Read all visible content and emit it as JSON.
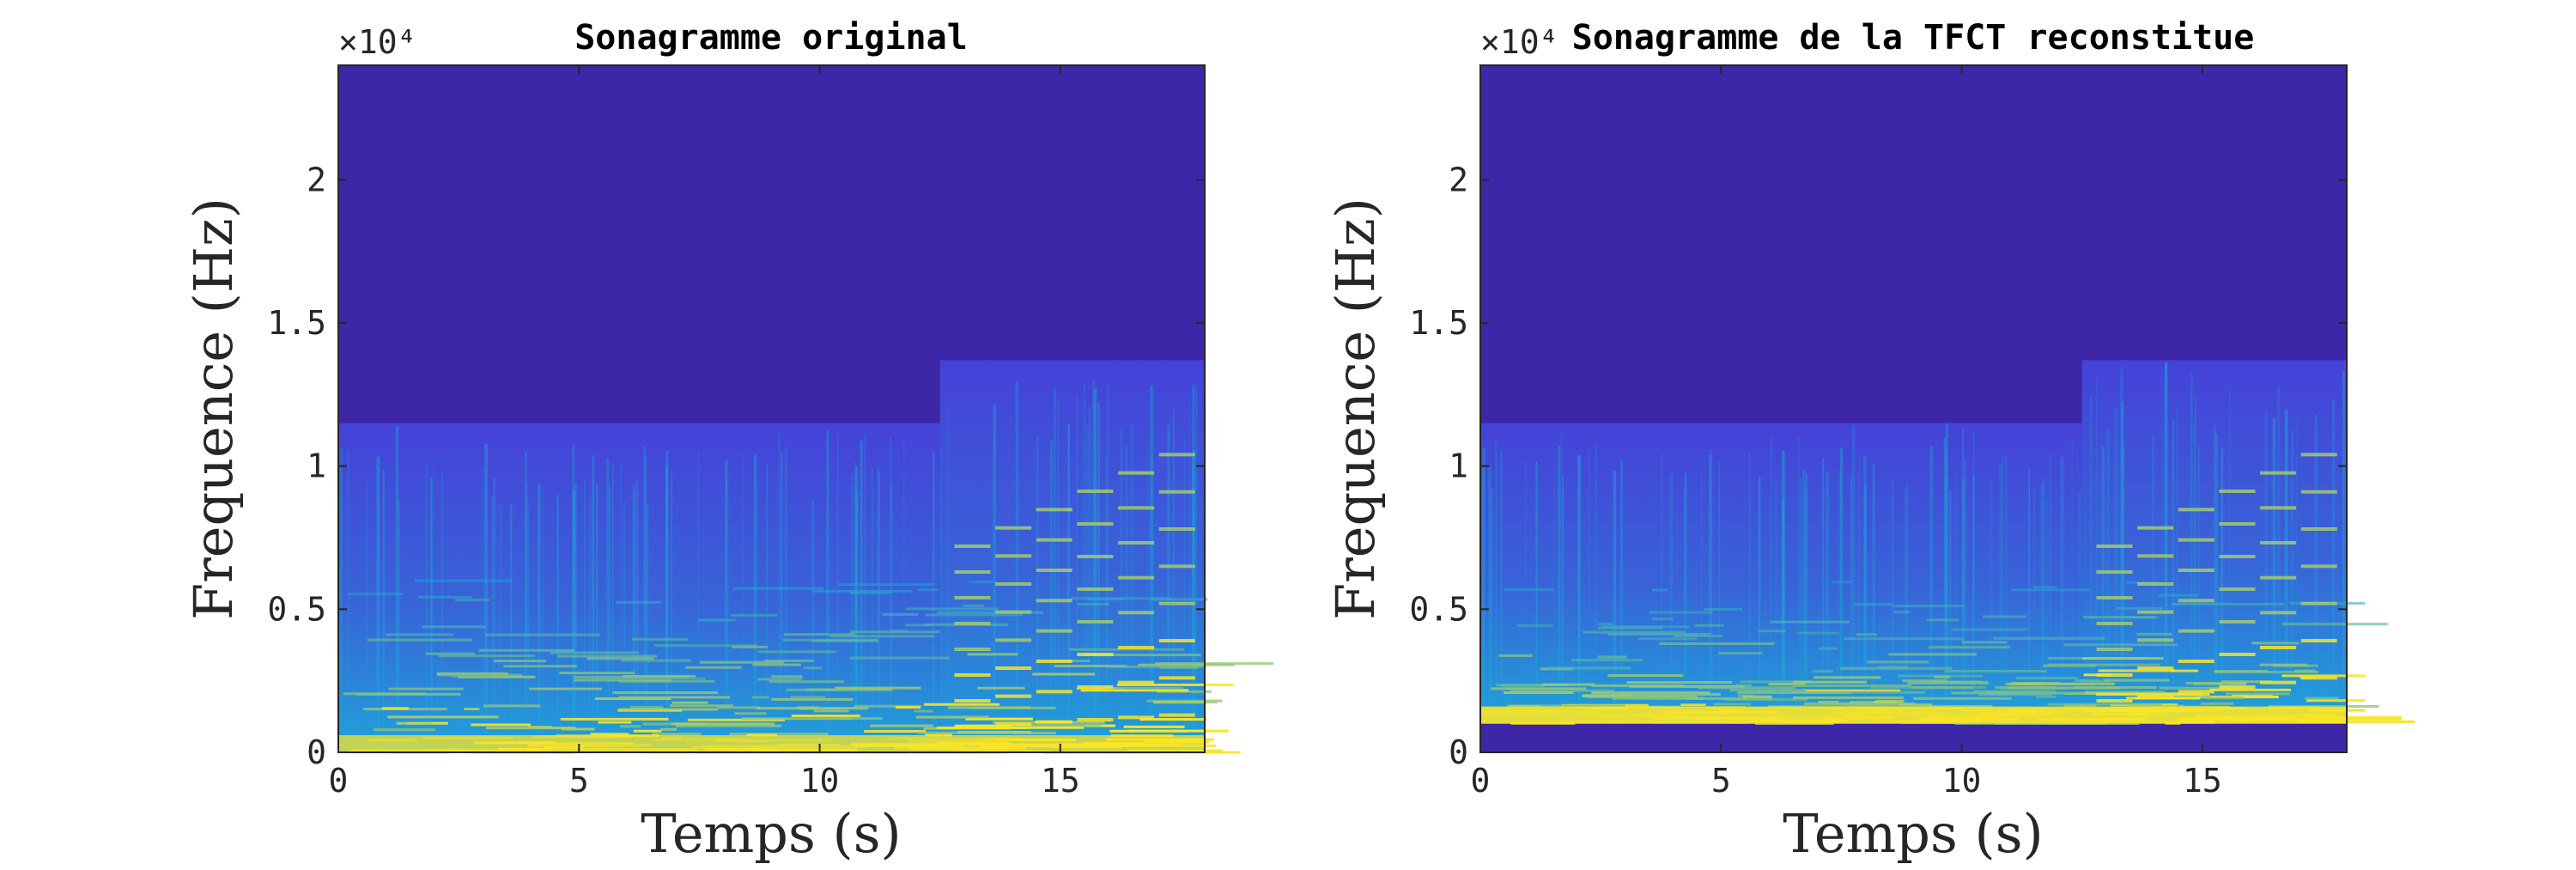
{
  "chart_data": [
    {
      "type": "heatmap",
      "title": "Sonagramme original",
      "xlabel": "Temps (s)",
      "ylabel": "Frequence (Hz)",
      "xlim": [
        0,
        18
      ],
      "ylim": [
        0,
        24000
      ],
      "x_ticks": [
        0,
        5,
        10,
        15
      ],
      "x_tick_labels": [
        "0",
        "5",
        "10",
        "15"
      ],
      "y_ticks": [
        0,
        5000,
        10000,
        15000,
        20000
      ],
      "y_tick_labels": [
        "0",
        "0.5",
        "1",
        "1.5",
        "2"
      ],
      "y_exponent_label": "×10⁴",
      "colormap": "parula",
      "colors": {
        "background": "#3e26a8",
        "low": "#4542d8",
        "mid": "#1fa3d9",
        "high": "#f9e426"
      },
      "content_bands_hz": [
        {
          "t_start": 0,
          "t_end": 2,
          "f_max": 11500
        },
        {
          "t_start": 2,
          "t_end": 12.5,
          "f_max": 11500
        },
        {
          "t_start": 12.5,
          "t_end": 18,
          "f_max": 13700
        }
      ],
      "low_cut_hz": 0
    },
    {
      "type": "heatmap",
      "title": "Sonagramme de la TFCT reconstitue",
      "xlabel": "Temps (s)",
      "ylabel": "Frequence (Hz)",
      "xlim": [
        0,
        18
      ],
      "ylim": [
        0,
        24000
      ],
      "x_ticks": [
        0,
        5,
        10,
        15
      ],
      "x_tick_labels": [
        "0",
        "5",
        "10",
        "15"
      ],
      "y_ticks": [
        0,
        5000,
        10000,
        15000,
        20000
      ],
      "y_tick_labels": [
        "0",
        "0.5",
        "1",
        "1.5",
        "2"
      ],
      "y_exponent_label": "×10⁴",
      "colormap": "parula",
      "colors": {
        "background": "#3e26a8",
        "low": "#4542d8",
        "mid": "#1fa3d9",
        "high": "#f9e426"
      },
      "content_bands_hz": [
        {
          "t_start": 0,
          "t_end": 2,
          "f_max": 11500
        },
        {
          "t_start": 2,
          "t_end": 12.5,
          "f_max": 11500
        },
        {
          "t_start": 12.5,
          "t_end": 18,
          "f_max": 13700
        }
      ],
      "low_cut_hz": 1000
    }
  ]
}
